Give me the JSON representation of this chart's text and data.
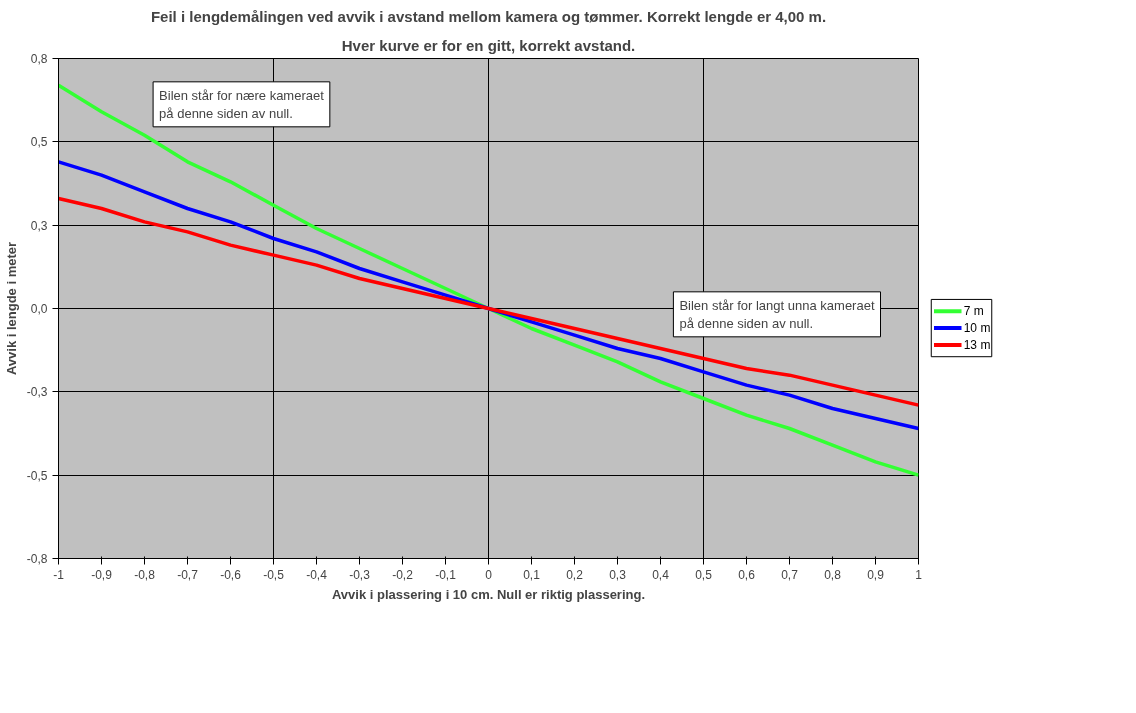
{
  "chart_data": {
    "type": "line",
    "title": "Feil i lengdemålingen ved avvik i avstand mellom kamera og tømmer. Korrekt lengde er 4,00 m.",
    "subtitle": "Hver kurve er for en gitt, korrekt avstand.",
    "xlabel": "Avvik i plassering i 10 cm. Null er riktig plassering.",
    "ylabel": "Avvik i lengde i meter",
    "x": [
      -1,
      -0.9,
      -0.8,
      -0.7,
      -0.6,
      -0.5,
      -0.4,
      -0.3,
      -0.2,
      -0.1,
      0,
      0.1,
      0.2,
      0.3,
      0.4,
      0.5,
      0.6,
      0.7,
      0.8,
      0.9,
      1
    ],
    "series": [
      {
        "name": "7 m",
        "color": "#33ff33",
        "values": [
          0.67,
          0.59,
          0.52,
          0.44,
          0.38,
          0.31,
          0.24,
          0.18,
          0.12,
          0.06,
          0,
          -0.06,
          -0.11,
          -0.16,
          -0.22,
          -0.27,
          -0.32,
          -0.36,
          -0.41,
          -0.46,
          -0.5
        ]
      },
      {
        "name": "10 m",
        "color": "#0000ff",
        "values": [
          0.44,
          0.4,
          0.35,
          0.3,
          0.26,
          0.21,
          0.17,
          0.12,
          0.08,
          0.04,
          0,
          -0.04,
          -0.08,
          -0.12,
          -0.15,
          -0.19,
          -0.23,
          -0.26,
          -0.3,
          -0.33,
          -0.36
        ]
      },
      {
        "name": "13 m",
        "color": "#ff0000",
        "values": [
          0.33,
          0.3,
          0.26,
          0.23,
          0.19,
          0.16,
          0.13,
          0.09,
          0.06,
          0.03,
          0,
          -0.03,
          -0.06,
          -0.09,
          -0.12,
          -0.15,
          -0.18,
          -0.2,
          -0.23,
          -0.26,
          -0.29
        ]
      }
    ],
    "xlim": [
      -1,
      1
    ],
    "ylim": [
      -0.75,
      0.75
    ],
    "xticks": [
      {
        "value": -1,
        "label": "-1"
      },
      {
        "value": -0.9,
        "label": "-0,9"
      },
      {
        "value": -0.8,
        "label": "-0,8"
      },
      {
        "value": -0.7,
        "label": "-0,7"
      },
      {
        "value": -0.6,
        "label": "-0,6"
      },
      {
        "value": -0.5,
        "label": "-0,5"
      },
      {
        "value": -0.4,
        "label": "-0,4"
      },
      {
        "value": -0.3,
        "label": "-0,3"
      },
      {
        "value": -0.2,
        "label": "-0,2"
      },
      {
        "value": -0.1,
        "label": "-0,1"
      },
      {
        "value": 0,
        "label": "0"
      },
      {
        "value": 0.1,
        "label": "0,1"
      },
      {
        "value": 0.2,
        "label": "0,2"
      },
      {
        "value": 0.3,
        "label": "0,3"
      },
      {
        "value": 0.4,
        "label": "0,4"
      },
      {
        "value": 0.5,
        "label": "0,5"
      },
      {
        "value": 0.6,
        "label": "0,6"
      },
      {
        "value": 0.7,
        "label": "0,7"
      },
      {
        "value": 0.8,
        "label": "0,8"
      },
      {
        "value": 0.9,
        "label": "0,9"
      },
      {
        "value": 1,
        "label": "1"
      }
    ],
    "yticks": [
      {
        "value": -0.75,
        "label": "-0,8"
      },
      {
        "value": -0.5,
        "label": "-0,5"
      },
      {
        "value": -0.25,
        "label": "-0,3"
      },
      {
        "value": 0,
        "label": "0,0"
      },
      {
        "value": 0.25,
        "label": "0,3"
      },
      {
        "value": 0.5,
        "label": "0,5"
      },
      {
        "value": 0.75,
        "label": "0,8"
      }
    ],
    "annotations": [
      "Bilen står for nære kameraet\npå denne siden av null.",
      "Bilen står for langt unna kameraet\npå denne siden av null."
    ],
    "grid": true,
    "legend": "right",
    "marker": "none",
    "line_style": "solid"
  }
}
